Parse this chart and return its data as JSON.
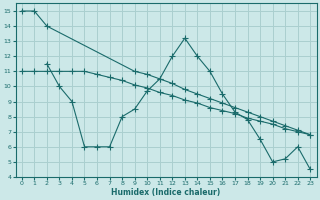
{
  "xlabel": "Humidex (Indice chaleur)",
  "xlim": [
    -0.5,
    23.5
  ],
  "ylim": [
    4,
    15.5
  ],
  "xticks": [
    0,
    1,
    2,
    3,
    4,
    5,
    6,
    7,
    8,
    9,
    10,
    11,
    12,
    13,
    14,
    15,
    16,
    17,
    18,
    19,
    20,
    21,
    22,
    23
  ],
  "yticks": [
    4,
    5,
    6,
    7,
    8,
    9,
    10,
    11,
    12,
    13,
    14,
    15
  ],
  "bg_color": "#cce8e8",
  "line_color": "#1a6b6b",
  "grid_color": "#aacfcf",
  "series_a_x": [
    0,
    1,
    2,
    9,
    10,
    11,
    12,
    13,
    14,
    15,
    16,
    17,
    18,
    19,
    20,
    21,
    22,
    23
  ],
  "series_a_y": [
    15,
    15,
    14,
    11,
    10.8,
    10.5,
    10.2,
    9.8,
    9.5,
    9.2,
    8.9,
    8.6,
    8.3,
    8.0,
    7.7,
    7.4,
    7.1,
    6.8
  ],
  "series_b_x": [
    2,
    3,
    4,
    5,
    6,
    7,
    8,
    9,
    10,
    11,
    12,
    13,
    14,
    15,
    16,
    17,
    18,
    19,
    20,
    21,
    22,
    23
  ],
  "series_b_y": [
    11.5,
    10,
    9,
    6,
    6,
    6,
    8,
    8.5,
    9.7,
    10.5,
    12.0,
    13.2,
    12.0,
    11.0,
    9.5,
    8.3,
    7.8,
    6.5,
    5.0,
    5.2,
    6.0,
    4.5
  ],
  "series_c_x": [
    0,
    1,
    2,
    3,
    4,
    5,
    6,
    7,
    8,
    9,
    10,
    11,
    12,
    13,
    14,
    15,
    16,
    17,
    18,
    19,
    20,
    21,
    22,
    23
  ],
  "series_c_y": [
    11,
    11,
    11,
    11,
    11,
    11,
    10.8,
    10.6,
    10.4,
    10.1,
    9.9,
    9.6,
    9.4,
    9.1,
    8.9,
    8.6,
    8.4,
    8.2,
    7.9,
    7.7,
    7.5,
    7.2,
    7.0,
    6.8
  ]
}
